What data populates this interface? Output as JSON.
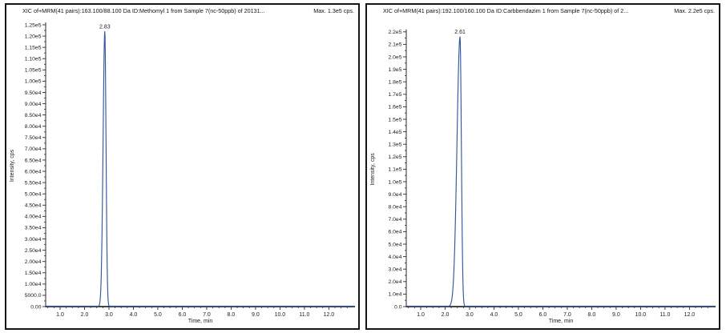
{
  "colors": {
    "trace": "#33589e",
    "trace_highlight": "#7d9fd2",
    "axis": "#2a2a2a",
    "text": "#1b1b1b",
    "panel_border": "#161616",
    "background": "#ffffff"
  },
  "chart_data": [
    {
      "type": "line",
      "title": "XIC of+MRM(41 pairs):163.100/88.100 Da ID:Methomyl 1 from Sample 7(nc-50ppb) of 20131...",
      "max_annotation": "Max. 1.3e5 cps.",
      "xlabel": "Time, min",
      "ylabel": "Intensity, cps",
      "xlim": [
        0.41,
        13.07
      ],
      "ylim": [
        0,
        125000
      ],
      "grid": false,
      "x_tick_values": [
        1,
        2,
        3,
        4,
        5,
        6,
        7,
        8,
        9,
        10,
        11,
        12
      ],
      "x_tick_labels": [
        "1.0",
        "2.0",
        "3.0",
        "4.0",
        "5.0",
        "6.0",
        "7.0",
        "8.0",
        "9.0",
        "10.0",
        "11.0",
        "12.0"
      ],
      "y_tick_values": [
        125000,
        120000,
        115000,
        110000,
        105000,
        100000,
        95000,
        90000,
        85000,
        80000,
        75000,
        70000,
        65000,
        60000,
        55000,
        50000,
        45000,
        40000,
        35000,
        30000,
        25000,
        20000,
        15000,
        10000,
        5000,
        0
      ],
      "y_tick_labels": [
        "1.25e5",
        "1.20e5",
        "1.15e5",
        "1.10e5",
        "1.05e5",
        "1.00e5",
        "9.50e4",
        "9.00e4",
        "8.50e4",
        "8.00e4",
        "7.50e4",
        "7.00e4",
        "6.50e4",
        "6.00e4",
        "5.50e4",
        "5.00e4",
        "4.50e4",
        "4.00e4",
        "3.50e4",
        "3.00e4",
        "2.50e4",
        "2.00e4",
        "1.50e4",
        "1.00e4",
        "5000.0",
        "0.00"
      ],
      "series": [
        {
          "name": "Methomyl 1",
          "peak": {
            "retention_time_min": 2.83,
            "apex_label": "2.83",
            "height_cps": 122000,
            "sigma_left_min": 0.07,
            "sigma_right_min": 0.05
          },
          "baseline_cps": 0
        }
      ]
    },
    {
      "type": "line",
      "title": "XIC of+MRM(41 pairs):192.100/160.100 Da ID:Carbbendazim 1 from Sample 7(nc-50ppb) of  2...",
      "max_annotation": "Max. 2.2e5 cps.",
      "xlabel": "Time, min",
      "ylabel": "Intensity, cps",
      "xlim": [
        0.41,
        13.07
      ],
      "ylim": [
        0,
        220000
      ],
      "grid": false,
      "x_tick_values": [
        1,
        2,
        3,
        4,
        5,
        6,
        7,
        8,
        9,
        10,
        11,
        12
      ],
      "x_tick_labels": [
        "1.0",
        "2.0",
        "3.0",
        "4.0",
        "5.0",
        "6.0",
        "7.0",
        "8.0",
        "9.0",
        "10.0",
        "11.0",
        "12.0"
      ],
      "y_tick_values": [
        220000,
        210000,
        200000,
        190000,
        180000,
        170000,
        160000,
        150000,
        140000,
        130000,
        120000,
        110000,
        100000,
        90000,
        80000,
        70000,
        60000,
        50000,
        40000,
        30000,
        20000,
        10000,
        0
      ],
      "y_tick_labels": [
        "2.2e5",
        "2.1e5",
        "2.0e5",
        "1.9e5",
        "1.8e5",
        "1.7e5",
        "1.6e5",
        "1.5e5",
        "1.4e5",
        "1.3e5",
        "1.2e5",
        "1.1e5",
        "1.0e5",
        "9.0e4",
        "8.0e4",
        "7.0e4",
        "6.0e4",
        "5.0e4",
        "4.0e4",
        "3.0e4",
        "2.0e4",
        "1.0e4",
        "0.0"
      ],
      "series": [
        {
          "name": "Carbbendazim 1",
          "peak": {
            "retention_time_min": 2.61,
            "apex_label": "2.61",
            "height_cps": 216000,
            "sigma_left_min": 0.125,
            "sigma_right_min": 0.055
          },
          "baseline_cps": 0
        }
      ]
    }
  ]
}
